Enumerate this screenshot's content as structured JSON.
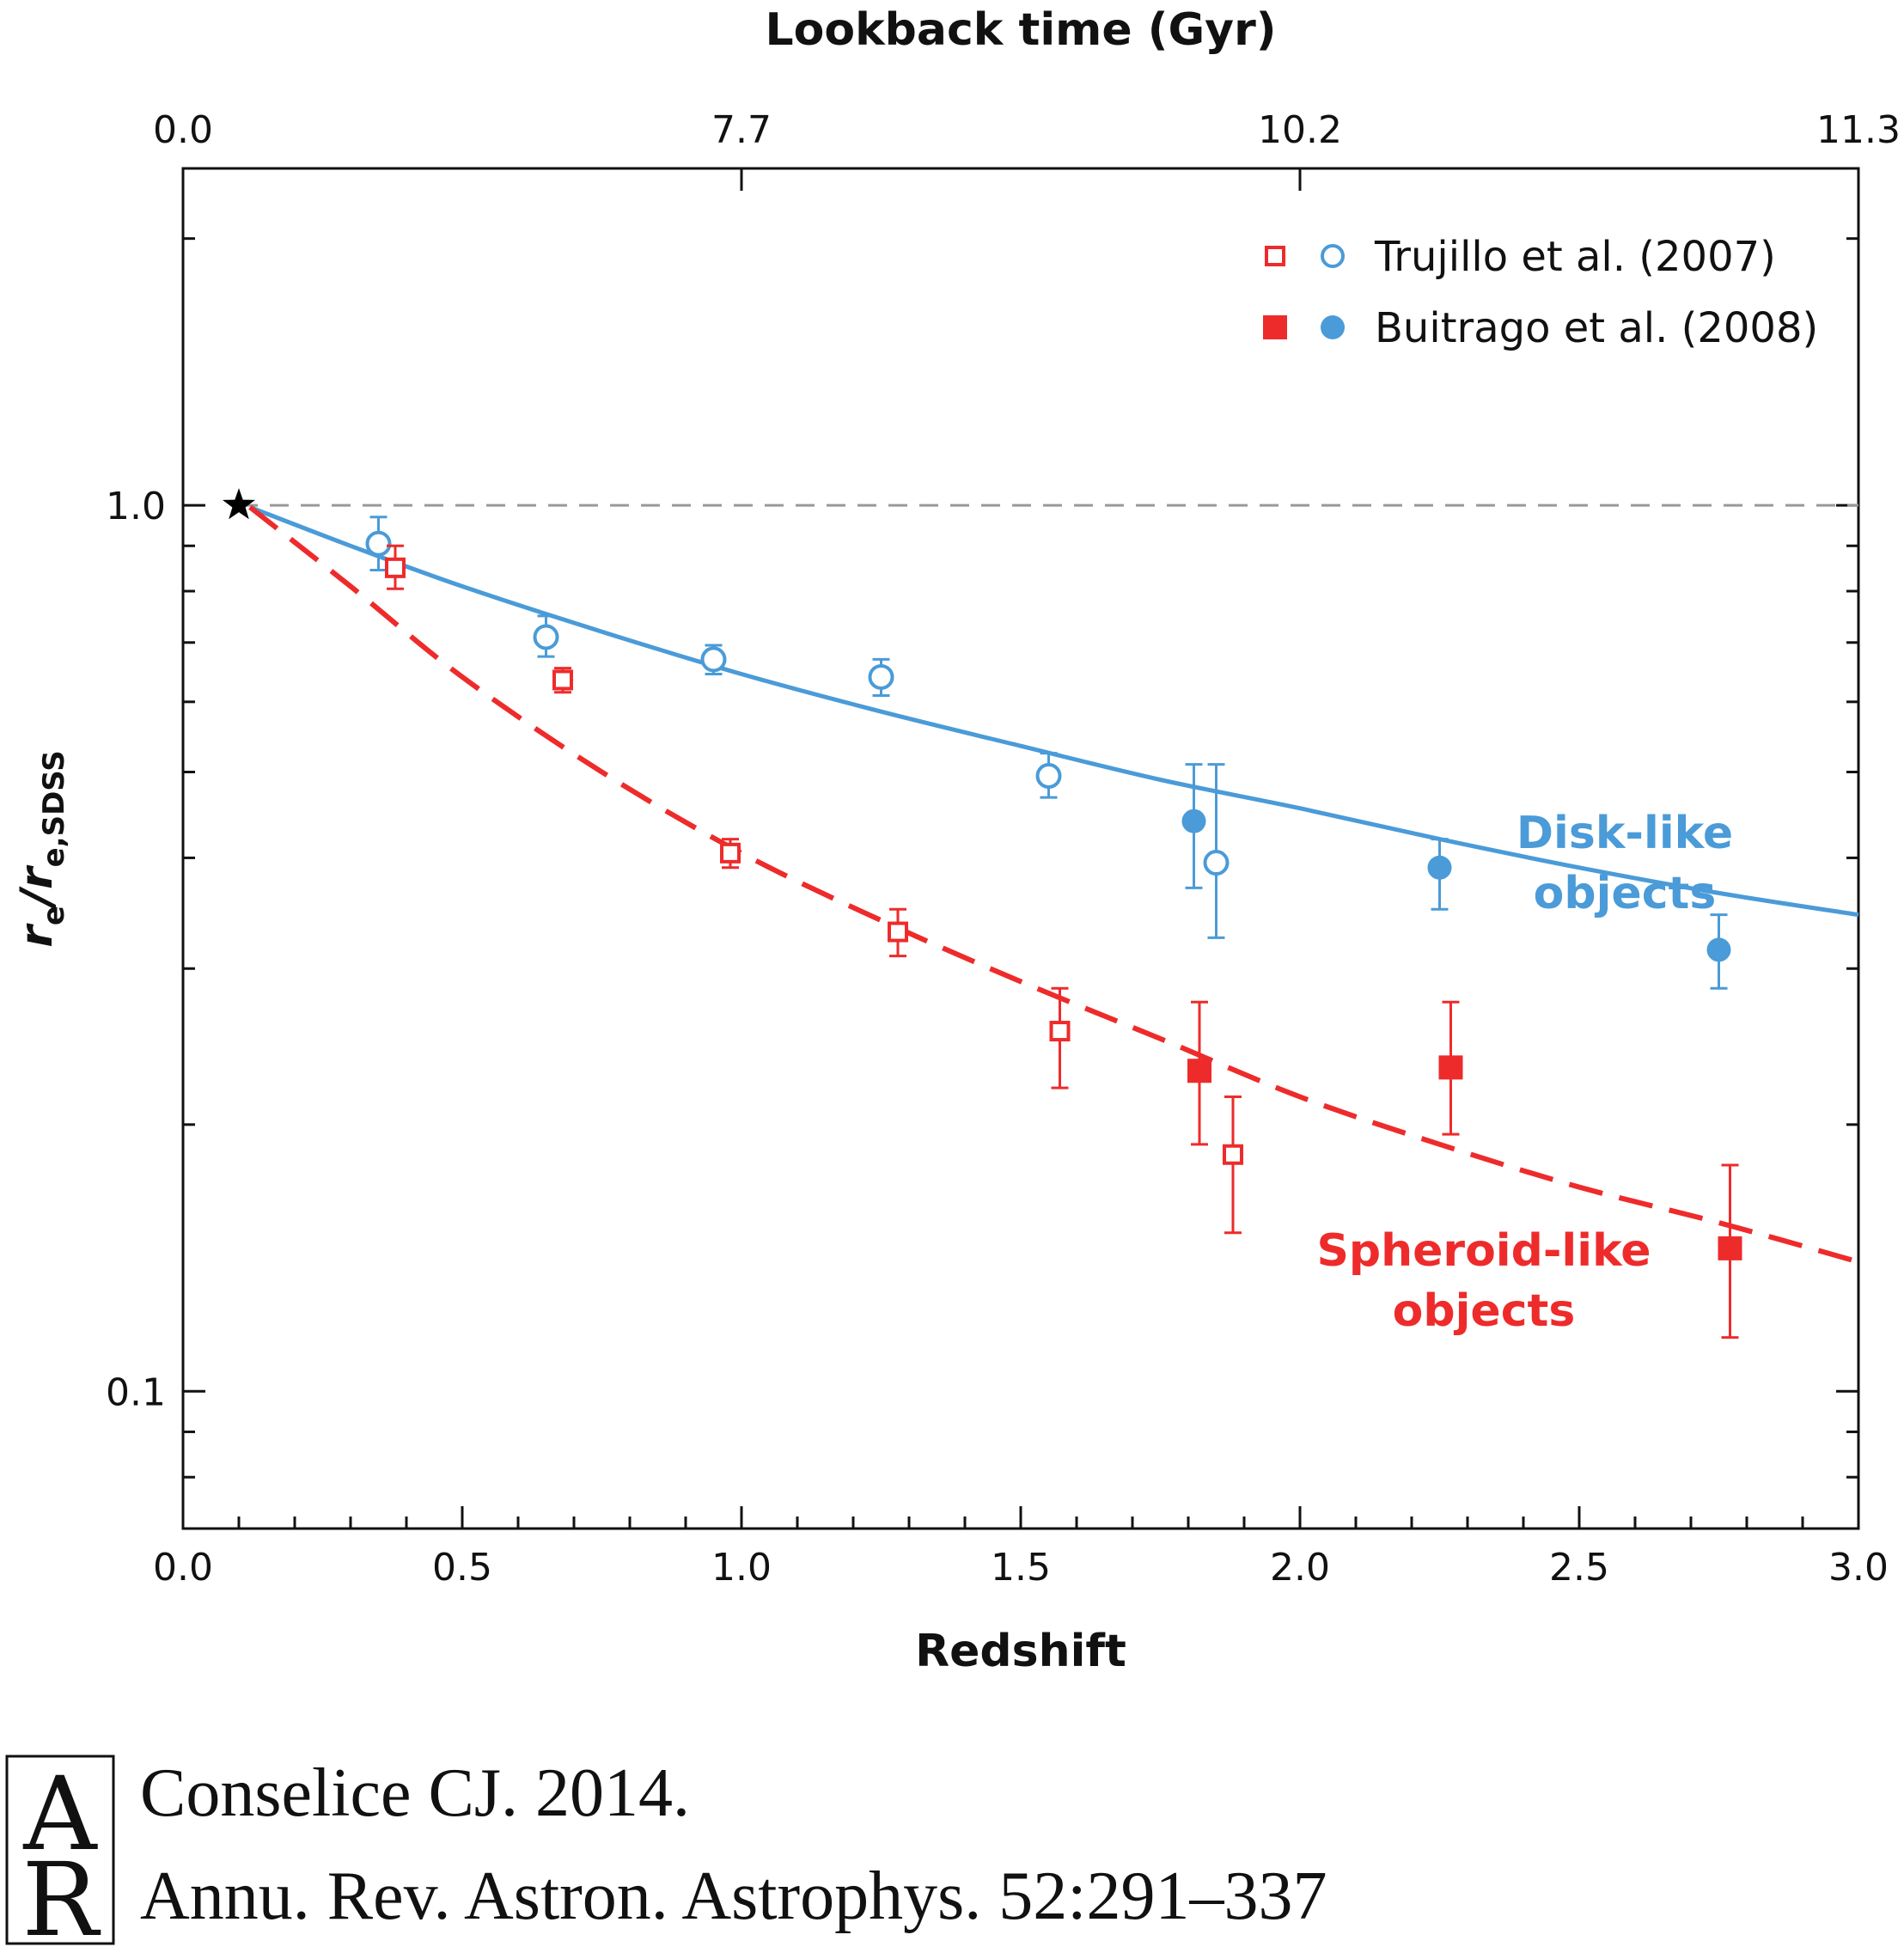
{
  "chart_data": {
    "type": "scatter",
    "xlabel": "Redshift",
    "top_xlabel": "Lookback time (Gyr)",
    "ylabel": {
      "main": "r",
      "sub1": "e",
      "slash": "/r",
      "sub2": "e,SDSS"
    },
    "xlim": [
      0.0,
      3.0
    ],
    "ylim": [
      0.07,
      2.4
    ],
    "y_scale": "log",
    "x_ticks": [
      {
        "v": 0.0,
        "label": "0.0"
      },
      {
        "v": 0.5,
        "label": "0.5"
      },
      {
        "v": 1.0,
        "label": "1.0"
      },
      {
        "v": 1.5,
        "label": "1.5"
      },
      {
        "v": 2.0,
        "label": "2.0"
      },
      {
        "v": 2.5,
        "label": "2.5"
      },
      {
        "v": 3.0,
        "label": "3.0"
      }
    ],
    "top_ticks": [
      {
        "v": 0.0,
        "label": "0.0"
      },
      {
        "v": 1.0,
        "label": "7.7"
      },
      {
        "v": 2.0,
        "label": "10.2"
      },
      {
        "v": 3.0,
        "label": "11.3"
      }
    ],
    "y_ticks": [
      {
        "v": 1.0,
        "label": "1.0"
      },
      {
        "v": 0.1,
        "label": "0.1"
      }
    ],
    "reference_line": {
      "y": 1.0,
      "style": "dashed",
      "color": "#999999"
    },
    "reference_star": {
      "x": 0.1,
      "y": 1.0
    },
    "colors": {
      "disk": "#4a9bd8",
      "spheroid": "#ee2b2b",
      "text": "#111111"
    },
    "legend": {
      "placement": "top-right",
      "entries": [
        {
          "label": "Trujillo et al. (2007)",
          "style": "open"
        },
        {
          "label": "Buitrago et al. (2008)",
          "style": "filled"
        }
      ]
    },
    "series": [
      {
        "name": "Trujillo et al. (2007)",
        "points": [
          {
            "type": "disk",
            "x": 0.35,
            "y": 0.905,
            "yl": 0.845,
            "yu": 0.97
          },
          {
            "type": "disk",
            "x": 0.65,
            "y": 0.71,
            "yl": 0.675,
            "yu": 0.75
          },
          {
            "type": "disk",
            "x": 0.95,
            "y": 0.67,
            "yl": 0.645,
            "yu": 0.695
          },
          {
            "type": "disk",
            "x": 1.25,
            "y": 0.64,
            "yl": 0.61,
            "yu": 0.67
          },
          {
            "type": "disk",
            "x": 1.55,
            "y": 0.495,
            "yl": 0.468,
            "yu": 0.525
          },
          {
            "type": "disk",
            "x": 1.85,
            "y": 0.395,
            "yl": 0.325,
            "yu": 0.51
          },
          {
            "type": "spheroid",
            "x": 0.38,
            "y": 0.85,
            "yl": 0.805,
            "yu": 0.9
          },
          {
            "type": "spheroid",
            "x": 0.68,
            "y": 0.635,
            "yl": 0.615,
            "yu": 0.655
          },
          {
            "type": "spheroid",
            "x": 0.98,
            "y": 0.405,
            "yl": 0.39,
            "yu": 0.42
          },
          {
            "type": "spheroid",
            "x": 1.28,
            "y": 0.33,
            "yl": 0.31,
            "yu": 0.35
          },
          {
            "type": "spheroid",
            "x": 1.57,
            "y": 0.255,
            "yl": 0.22,
            "yu": 0.285
          },
          {
            "type": "spheroid",
            "x": 1.88,
            "y": 0.185,
            "yl": 0.151,
            "yu": 0.215
          }
        ]
      },
      {
        "name": "Buitrago et al. (2008)",
        "points": [
          {
            "type": "disk",
            "x": 1.81,
            "y": 0.44,
            "yl": 0.37,
            "yu": 0.51
          },
          {
            "type": "disk",
            "x": 2.25,
            "y": 0.39,
            "yl": 0.35,
            "yu": 0.42
          },
          {
            "type": "disk",
            "x": 2.75,
            "y": 0.315,
            "yl": 0.285,
            "yu": 0.345
          },
          {
            "type": "spheroid",
            "x": 1.82,
            "y": 0.23,
            "yl": 0.19,
            "yu": 0.275
          },
          {
            "type": "spheroid",
            "x": 2.27,
            "y": 0.232,
            "yl": 0.195,
            "yu": 0.275
          },
          {
            "type": "spheroid",
            "x": 2.77,
            "y": 0.145,
            "yl": 0.115,
            "yu": 0.18
          }
        ]
      }
    ],
    "fits": [
      {
        "type": "disk",
        "style": "solid",
        "x": [
          0.12,
          0.3,
          0.5,
          0.75,
          1.0,
          1.25,
          1.5,
          1.75,
          2.0,
          2.25,
          2.5,
          2.75,
          3.0
        ],
        "y": [
          0.995,
          0.9,
          0.81,
          0.72,
          0.645,
          0.585,
          0.535,
          0.49,
          0.455,
          0.42,
          0.39,
          0.365,
          0.345
        ]
      },
      {
        "type": "spheroid",
        "style": "dashed",
        "x": [
          0.12,
          0.3,
          0.5,
          0.75,
          1.0,
          1.25,
          1.5,
          1.75,
          2.0,
          2.25,
          2.5,
          2.75,
          3.0
        ],
        "y": [
          0.995,
          0.81,
          0.64,
          0.5,
          0.405,
          0.34,
          0.29,
          0.25,
          0.215,
          0.19,
          0.17,
          0.155,
          0.14
        ]
      }
    ],
    "annotations": [
      {
        "type": "disk",
        "lines": [
          "Disk-like",
          "objects"
        ]
      },
      {
        "type": "spheroid",
        "lines": [
          "Spheroid-like",
          "objects"
        ]
      }
    ]
  },
  "citation": {
    "logo_top": "A",
    "logo_bottom": "R",
    "line1": "Conselice CJ. 2014.",
    "line2": "Annu. Rev. Astron. Astrophys. 52:291–337"
  }
}
